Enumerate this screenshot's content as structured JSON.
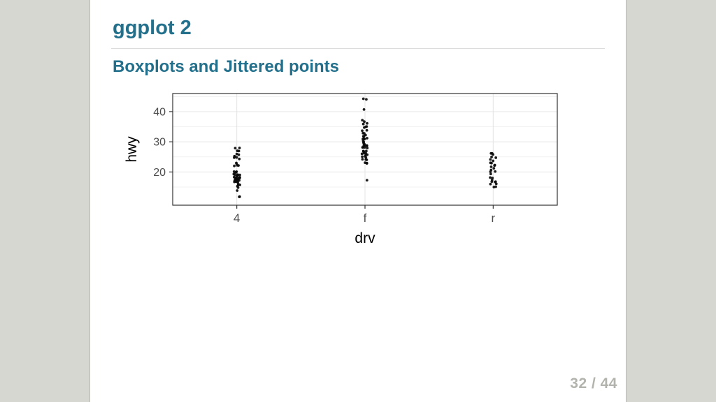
{
  "slide": {
    "title": "ggplot 2",
    "subtitle": "Boxplots and Jittered points",
    "page_number": "32 / 44",
    "accent_color": "#23708c"
  },
  "chart_data": {
    "type": "scatter",
    "subtype": "jittered-strip",
    "title": "",
    "xlabel": "drv",
    "ylabel": "hwy",
    "categories": [
      "4",
      "f",
      "r"
    ],
    "y_ticks": [
      20,
      30,
      40
    ],
    "ylim": [
      9,
      46
    ],
    "grid": true,
    "legend": "none",
    "point_color": "#0a0a0a",
    "panel_border_color": "#333333",
    "gridline_color": "#e4e4e4",
    "series": [
      {
        "name": "4",
        "values": [
          12,
          12,
          14,
          15,
          15,
          16,
          16,
          16,
          17,
          17,
          17,
          17,
          17,
          17,
          17,
          17,
          17,
          17,
          17,
          17,
          18,
          18,
          18,
          18,
          18,
          18,
          18,
          18,
          18,
          19,
          19,
          19,
          19,
          19,
          19,
          19,
          20,
          20,
          20,
          20,
          22,
          22,
          22,
          23,
          23,
          24,
          25,
          25,
          25,
          25,
          26,
          26,
          27,
          27,
          28,
          28
        ]
      },
      {
        "name": "f",
        "values": [
          17,
          23,
          23,
          23,
          24,
          24,
          24,
          25,
          25,
          25,
          26,
          26,
          26,
          26,
          26,
          27,
          27,
          27,
          27,
          28,
          28,
          28,
          28,
          29,
          29,
          29,
          29,
          29,
          30,
          30,
          30,
          31,
          31,
          31,
          31,
          32,
          32,
          32,
          33,
          33,
          34,
          34,
          35,
          35,
          35,
          36,
          36,
          37,
          37,
          41,
          44,
          44
        ]
      },
      {
        "name": "r",
        "values": [
          15,
          15,
          16,
          16,
          17,
          17,
          17,
          17,
          18,
          18,
          19,
          20,
          20,
          21,
          21,
          22,
          22,
          22,
          23,
          23,
          24,
          24,
          25,
          25,
          26,
          26,
          26
        ]
      }
    ]
  }
}
